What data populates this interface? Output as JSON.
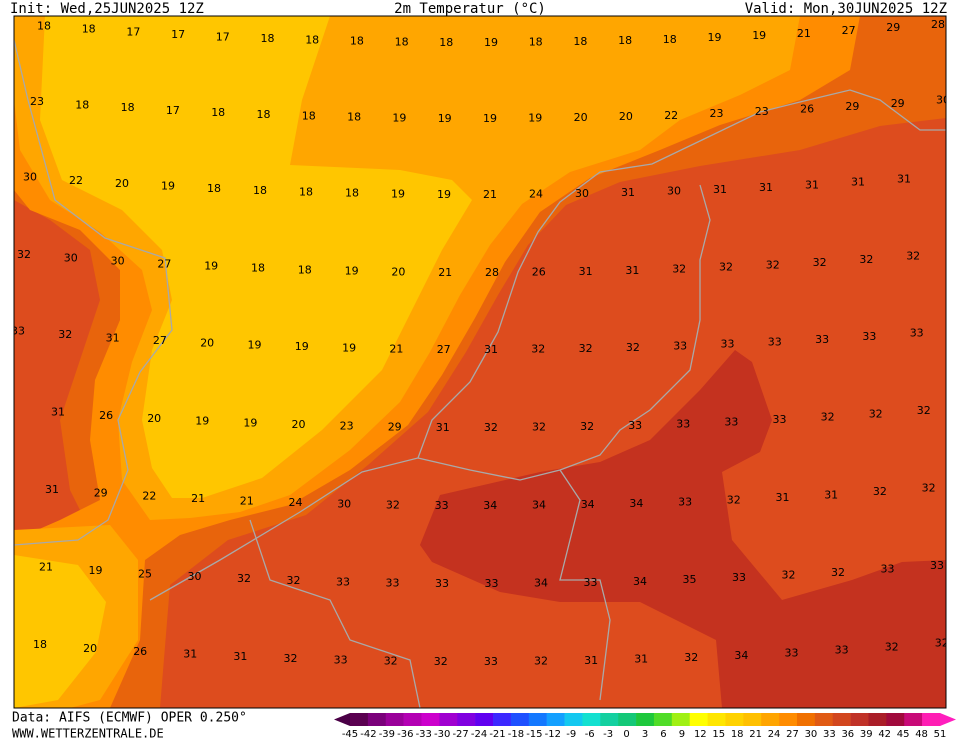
{
  "header": {
    "init": "Init: Wed,25JUN2025 12Z",
    "title": "2m Temperatur (°C)",
    "valid": "Valid: Mon,30JUN2025 12Z"
  },
  "map": {
    "rows": [
      [
        18,
        18,
        17,
        17,
        17,
        18,
        18,
        18,
        18,
        18,
        19,
        18,
        18,
        18,
        18,
        19,
        19,
        21,
        27,
        29,
        28
      ],
      [
        23,
        18,
        18,
        17,
        18,
        18,
        18,
        18,
        19,
        19,
        19,
        19,
        20,
        20,
        22,
        23,
        23,
        26,
        29,
        29,
        30
      ],
      [
        30,
        22,
        20,
        19,
        18,
        18,
        18,
        18,
        19,
        19,
        21,
        24,
        30,
        31,
        30,
        31,
        31,
        31,
        31,
        31
      ],
      [
        32,
        30,
        30,
        27,
        19,
        18,
        18,
        19,
        20,
        21,
        28,
        26,
        31,
        31,
        32,
        32,
        32,
        32,
        32,
        32
      ],
      [
        33,
        32,
        31,
        27,
        20,
        19,
        19,
        19,
        21,
        27,
        31,
        32,
        32,
        32,
        33,
        33,
        33,
        33,
        33,
        33
      ],
      [
        31,
        26,
        20,
        19,
        19,
        20,
        23,
        29,
        31,
        32,
        32,
        32,
        33,
        33,
        33,
        33,
        32,
        32,
        32
      ],
      [
        31,
        29,
        22,
        21,
        21,
        24,
        30,
        32,
        33,
        34,
        34,
        34,
        34,
        33,
        32,
        31,
        31,
        32,
        32
      ],
      [
        21,
        19,
        25,
        30,
        32,
        32,
        33,
        33,
        33,
        33,
        34,
        33,
        34,
        35,
        33,
        32,
        32,
        33,
        33
      ],
      [
        18,
        20,
        26,
        31,
        31,
        32,
        33,
        32,
        32,
        33,
        32,
        31,
        31,
        32,
        34,
        33,
        33,
        32,
        32
      ]
    ]
  },
  "colorbar": {
    "labels": [
      -45,
      -42,
      -39,
      -36,
      -33,
      -30,
      -27,
      -24,
      -21,
      -18,
      -15,
      -12,
      -9,
      -6,
      -3,
      0,
      3,
      6,
      9,
      12,
      15,
      18,
      21,
      24,
      27,
      30,
      33,
      36,
      39,
      42,
      45,
      48,
      51
    ],
    "colors": [
      "#4a0046",
      "#5a0050",
      "#7a007a",
      "#9a009a",
      "#b400b4",
      "#cc00cc",
      "#a000d0",
      "#8000e0",
      "#6000f0",
      "#3c28ff",
      "#1e50ff",
      "#1478ff",
      "#14a0ff",
      "#14c8f0",
      "#14e0d0",
      "#14d0a0",
      "#14c878",
      "#1ec83c",
      "#50dc28",
      "#a0f014",
      "#ffff00",
      "#ffe600",
      "#ffd200",
      "#ffc000",
      "#ffa500",
      "#ff8c00",
      "#f07000",
      "#e05a14",
      "#d2461e",
      "#c03228",
      "#aa1e28",
      "#a00a3c",
      "#c80a78",
      "#ff1eb4",
      "#ff1ebe"
    ]
  },
  "footer": {
    "data": "Data: AIFS (ECMWF) OPER 0.250°",
    "site": "WWW.WETTERZENTRALE.DE"
  }
}
